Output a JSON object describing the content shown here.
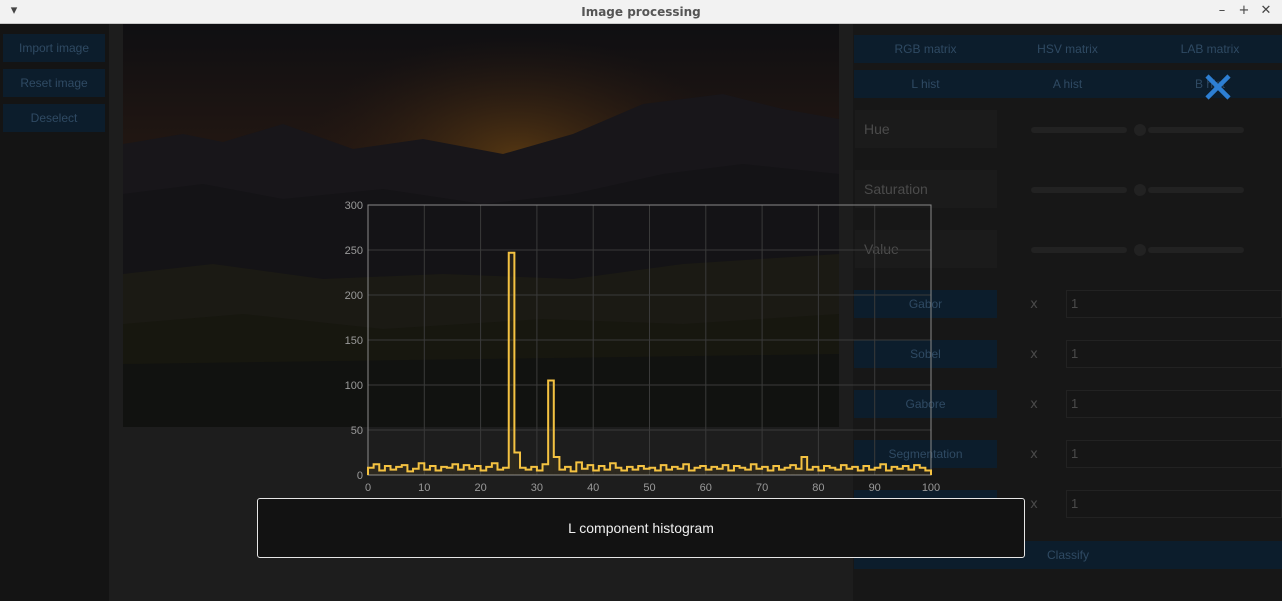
{
  "window": {
    "title": "Image processing",
    "menu_icon": "chevron-down-icon",
    "controls": [
      "minimize-icon",
      "maximize-icon",
      "close-icon"
    ]
  },
  "left_panel": {
    "buttons": [
      "Import image",
      "Reset image",
      "Deselect"
    ]
  },
  "right_panel": {
    "tabs_row1": [
      "RGB matrix",
      "HSV matrix",
      "LAB matrix"
    ],
    "tabs_row2": [
      "L hist",
      "A hist",
      "B hist"
    ],
    "sliders": [
      "Hue",
      "Saturation",
      "Value"
    ],
    "operations": [
      {
        "label": "Gabor",
        "x": "x",
        "value": "1"
      },
      {
        "label": "Sobel",
        "x": "x",
        "value": "1"
      },
      {
        "label": "Gabore",
        "x": "x",
        "value": "1"
      },
      {
        "label": "Segmentation",
        "x": "x",
        "value": "1"
      },
      {
        "label": "",
        "x": "x",
        "value": "1"
      }
    ],
    "classify": "Classify"
  },
  "overlay": {
    "close_icon": "close-icon",
    "caption": "L component histogram"
  },
  "colors": {
    "accent": "#2d7fd3",
    "series": "#f5c342",
    "button_bg": "#0c1d2c"
  },
  "chart_data": {
    "type": "line",
    "title": "",
    "xlabel": "",
    "ylabel": "",
    "xlim": [
      0,
      100
    ],
    "ylim": [
      0,
      300
    ],
    "x_ticks": [
      "0",
      "10",
      "20",
      "30",
      "40",
      "50",
      "60",
      "70",
      "80",
      "90",
      "100"
    ],
    "y_ticks": [
      "0",
      "50",
      "100",
      "150",
      "200",
      "250",
      "300"
    ],
    "grid": true,
    "step": true,
    "series": [
      {
        "x": [
          0,
          1,
          2,
          3,
          4,
          5,
          6,
          7,
          8,
          9,
          10,
          11,
          12,
          13,
          14,
          15,
          16,
          17,
          18,
          19,
          20,
          21,
          22,
          23,
          24,
          25,
          26,
          27,
          28,
          29,
          30,
          31,
          32,
          33,
          34,
          35,
          36,
          37,
          38,
          39,
          40,
          41,
          42,
          43,
          44,
          45,
          46,
          47,
          48,
          49,
          50,
          51,
          52,
          53,
          54,
          55,
          56,
          57,
          58,
          59,
          60,
          61,
          62,
          63,
          64,
          65,
          66,
          67,
          68,
          69,
          70,
          71,
          72,
          73,
          74,
          75,
          76,
          77,
          78,
          79,
          80,
          81,
          82,
          83,
          84,
          85,
          86,
          87,
          88,
          89,
          90,
          91,
          92,
          93,
          94,
          95,
          96,
          97,
          98,
          99
        ],
        "values": [
          8,
          12,
          5,
          10,
          6,
          9,
          11,
          4,
          7,
          13,
          6,
          10,
          5,
          9,
          8,
          12,
          6,
          11,
          7,
          10,
          5,
          9,
          13,
          6,
          8,
          247,
          25,
          8,
          6,
          9,
          5,
          12,
          105,
          20,
          6,
          9,
          4,
          14,
          7,
          11,
          5,
          10,
          6,
          13,
          8,
          5,
          9,
          6,
          10,
          7,
          8,
          5,
          11,
          6,
          9,
          7,
          12,
          5,
          8,
          10,
          6,
          9,
          7,
          11,
          5,
          10,
          8,
          6,
          12,
          7,
          9,
          5,
          10,
          6,
          8,
          11,
          7,
          20,
          6,
          9,
          5,
          10,
          8,
          6,
          11,
          7,
          9,
          5,
          10,
          6,
          8,
          12,
          5,
          9,
          7,
          10,
          6,
          11,
          8,
          5
        ]
      }
    ]
  }
}
